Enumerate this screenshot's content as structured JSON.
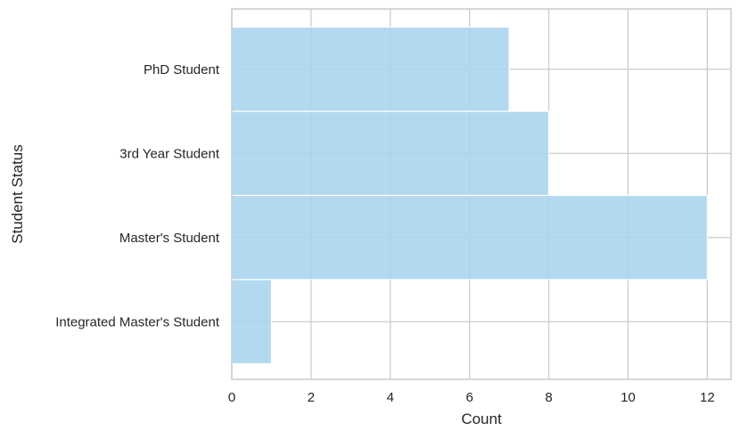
{
  "chart_data": {
    "type": "bar",
    "orientation": "horizontal",
    "title": "",
    "xlabel": "Count",
    "ylabel": "Student Status",
    "categories": [
      "PhD Student",
      "3rd Year Student",
      "Master's Student",
      "Integrated Master's Student"
    ],
    "values": [
      7,
      8,
      12,
      1
    ],
    "xlim": [
      0,
      12.6
    ],
    "xticks": [
      0,
      2,
      4,
      6,
      8,
      10,
      12
    ],
    "grid": true,
    "legend": "none",
    "bar_color": "#a8d4ef",
    "grid_color": "#cccccc",
    "text_color": "#262626"
  }
}
